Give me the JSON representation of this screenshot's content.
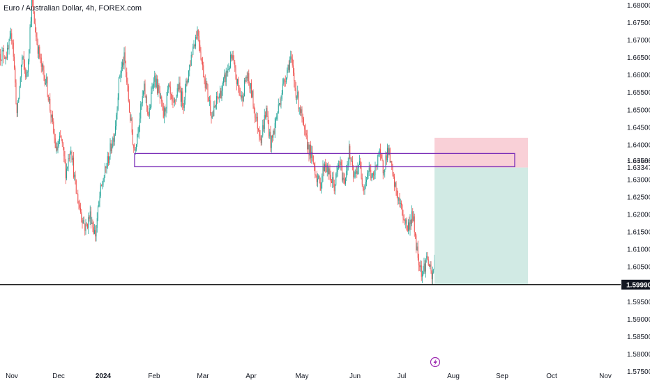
{
  "chart_data": {
    "type": "candlestick",
    "title": "Euro / Australian Dollar, 4h, FOREX.com",
    "y_ticks": [
      "1.68000",
      "1.67500",
      "1.67000",
      "1.66500",
      "1.66000",
      "1.65500",
      "1.65000",
      "1.64500",
      "1.64000",
      "1.63500",
      "1.63000",
      "1.62500",
      "1.62000",
      "1.61500",
      "1.61000",
      "1.60500",
      "1.60000",
      "1.59500",
      "1.59000",
      "1.58500",
      "1.58000",
      "1.57500"
    ],
    "x_ticks": [
      {
        "label": "Nov",
        "bold": false
      },
      {
        "label": "Dec",
        "bold": false
      },
      {
        "label": "2024",
        "bold": true
      },
      {
        "label": "Feb",
        "bold": false
      },
      {
        "label": "Mar",
        "bold": false
      },
      {
        "label": "Apr",
        "bold": false
      },
      {
        "label": "May",
        "bold": false
      },
      {
        "label": "Jun",
        "bold": false
      },
      {
        "label": "Jul",
        "bold": false
      },
      {
        "label": "Aug",
        "bold": false
      },
      {
        "label": "Sep",
        "bold": false
      },
      {
        "label": "Oct",
        "bold": false
      },
      {
        "label": "Nov",
        "bold": false
      }
    ],
    "ylim": [
      1.5745,
      1.6815
    ],
    "x_months_visible": [
      "Nov",
      "Dec",
      "2024",
      "Feb",
      "Mar",
      "Apr",
      "May",
      "Jun",
      "Jul",
      "Aug",
      "Sep",
      "Oct",
      "Nov"
    ],
    "price_path": [
      [
        0,
        1.666
      ],
      [
        0.3,
        1.672
      ],
      [
        0.6,
        1.648
      ],
      [
        0.9,
        1.665
      ],
      [
        1.2,
        1.659
      ],
      [
        1.5,
        1.681
      ],
      [
        1.8,
        1.67
      ],
      [
        2.1,
        1.662
      ],
      [
        2.4,
        1.658
      ],
      [
        2.7,
        1.648
      ],
      [
        3.0,
        1.638
      ],
      [
        3.3,
        1.642
      ],
      [
        3.6,
        1.632
      ],
      [
        3.9,
        1.64
      ],
      [
        4.2,
        1.627
      ],
      [
        4.5,
        1.621
      ],
      [
        4.8,
        1.616
      ],
      [
        5.1,
        1.62
      ],
      [
        5.4,
        1.614
      ],
      [
        5.7,
        1.626
      ],
      [
        6.0,
        1.632
      ],
      [
        6.3,
        1.638
      ],
      [
        6.6,
        1.644
      ],
      [
        6.9,
        1.66
      ],
      [
        7.2,
        1.665
      ],
      [
        7.5,
        1.65
      ],
      [
        7.8,
        1.638
      ],
      [
        8.1,
        1.647
      ],
      [
        8.4,
        1.656
      ],
      [
        8.7,
        1.648
      ],
      [
        9.0,
        1.66
      ],
      [
        9.3,
        1.655
      ],
      [
        9.6,
        1.648
      ],
      [
        9.9,
        1.656
      ],
      [
        10.2,
        1.65
      ],
      [
        10.5,
        1.657
      ],
      [
        10.8,
        1.652
      ],
      [
        11.1,
        1.66
      ],
      [
        11.4,
        1.668
      ],
      [
        11.7,
        1.673
      ],
      [
        12.0,
        1.662
      ],
      [
        12.3,
        1.655
      ],
      [
        12.6,
        1.648
      ],
      [
        12.9,
        1.653
      ],
      [
        13.2,
        1.656
      ],
      [
        13.5,
        1.661
      ],
      [
        13.8,
        1.665
      ],
      [
        14.1,
        1.658
      ],
      [
        14.4,
        1.653
      ],
      [
        14.7,
        1.66
      ],
      [
        15.0,
        1.655
      ],
      [
        15.3,
        1.647
      ],
      [
        15.6,
        1.642
      ],
      [
        15.9,
        1.65
      ],
      [
        16.2,
        1.64
      ],
      [
        16.5,
        1.647
      ],
      [
        16.8,
        1.654
      ],
      [
        17.1,
        1.66
      ],
      [
        17.4,
        1.665
      ],
      [
        17.7,
        1.656
      ],
      [
        18.0,
        1.65
      ],
      [
        18.3,
        1.642
      ],
      [
        18.6,
        1.638
      ],
      [
        18.9,
        1.633
      ],
      [
        19.2,
        1.628
      ],
      [
        19.5,
        1.635
      ],
      [
        19.8,
        1.631
      ],
      [
        20.1,
        1.628
      ],
      [
        20.4,
        1.635
      ],
      [
        20.7,
        1.629
      ],
      [
        21.0,
        1.638
      ],
      [
        21.3,
        1.63
      ],
      [
        21.6,
        1.635
      ],
      [
        21.9,
        1.628
      ],
      [
        22.2,
        1.633
      ],
      [
        22.5,
        1.63
      ],
      [
        22.8,
        1.638
      ],
      [
        23.1,
        1.633
      ],
      [
        23.4,
        1.639
      ],
      [
        23.7,
        1.63
      ],
      [
        24.0,
        1.625
      ],
      [
        24.3,
        1.62
      ],
      [
        24.6,
        1.616
      ],
      [
        24.9,
        1.62
      ],
      [
        25.2,
        1.609
      ],
      [
        25.5,
        1.603
      ],
      [
        25.8,
        1.608
      ],
      [
        26.1,
        1.601
      ],
      [
        26.4,
        1.612
      ],
      [
        26.7,
        1.605
      ],
      [
        27.0,
        1.61
      ],
      [
        27.3,
        1.602
      ],
      [
        27.6,
        1.612
      ],
      [
        27.9,
        1.607
      ],
      [
        28.2,
        1.602
      ],
      [
        28.5,
        1.608
      ],
      [
        28.8,
        1.615
      ],
      [
        29.1,
        1.625
      ],
      [
        29.4,
        1.628
      ],
      [
        29.7,
        1.6335
      ]
    ],
    "trade_box": {
      "entry_price": 1.63347,
      "stop_price": 1.642,
      "target_price": 1.5999,
      "stop_color": "#f8c8d0",
      "target_color": "#cfe9e3"
    },
    "zone_rectangle": {
      "top_price": 1.6375,
      "bottom_price": 1.6337,
      "border_color": "#7b2fb8"
    },
    "horizontal_line": {
      "price": 1.5999,
      "color": "#000000"
    },
    "price_labels": {
      "current": "1.63347",
      "line": "1.59990"
    },
    "colors": {
      "up": "#26a69a",
      "down": "#ef5350",
      "text": "#131722",
      "flag_bg": "#131722"
    }
  }
}
